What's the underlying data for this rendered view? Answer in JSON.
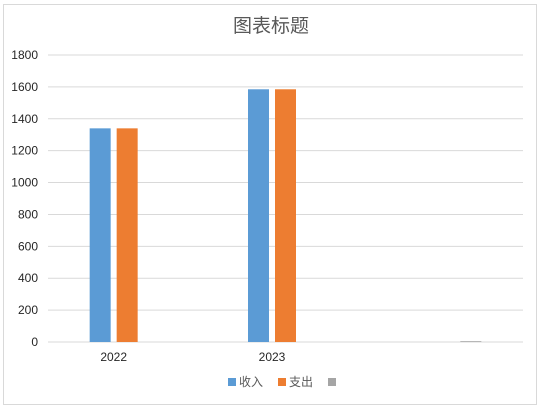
{
  "chart_data": {
    "type": "bar",
    "title": "图表标题",
    "categories": [
      "2022",
      "2023",
      ""
    ],
    "series": [
      {
        "name": "收入",
        "color": "#5b9bd5",
        "values": [
          1340,
          1585,
          0
        ]
      },
      {
        "name": "支出",
        "color": "#ed7d31",
        "values": [
          1340,
          1585,
          0
        ]
      },
      {
        "name": "",
        "color": "#a5a5a5",
        "values": [
          0,
          0,
          5
        ]
      }
    ],
    "ylim": [
      0,
      1800
    ],
    "yticks": [
      0,
      200,
      400,
      600,
      800,
      1000,
      1200,
      1400,
      1600,
      1800
    ],
    "grid": true,
    "legend_position": "bottom"
  }
}
